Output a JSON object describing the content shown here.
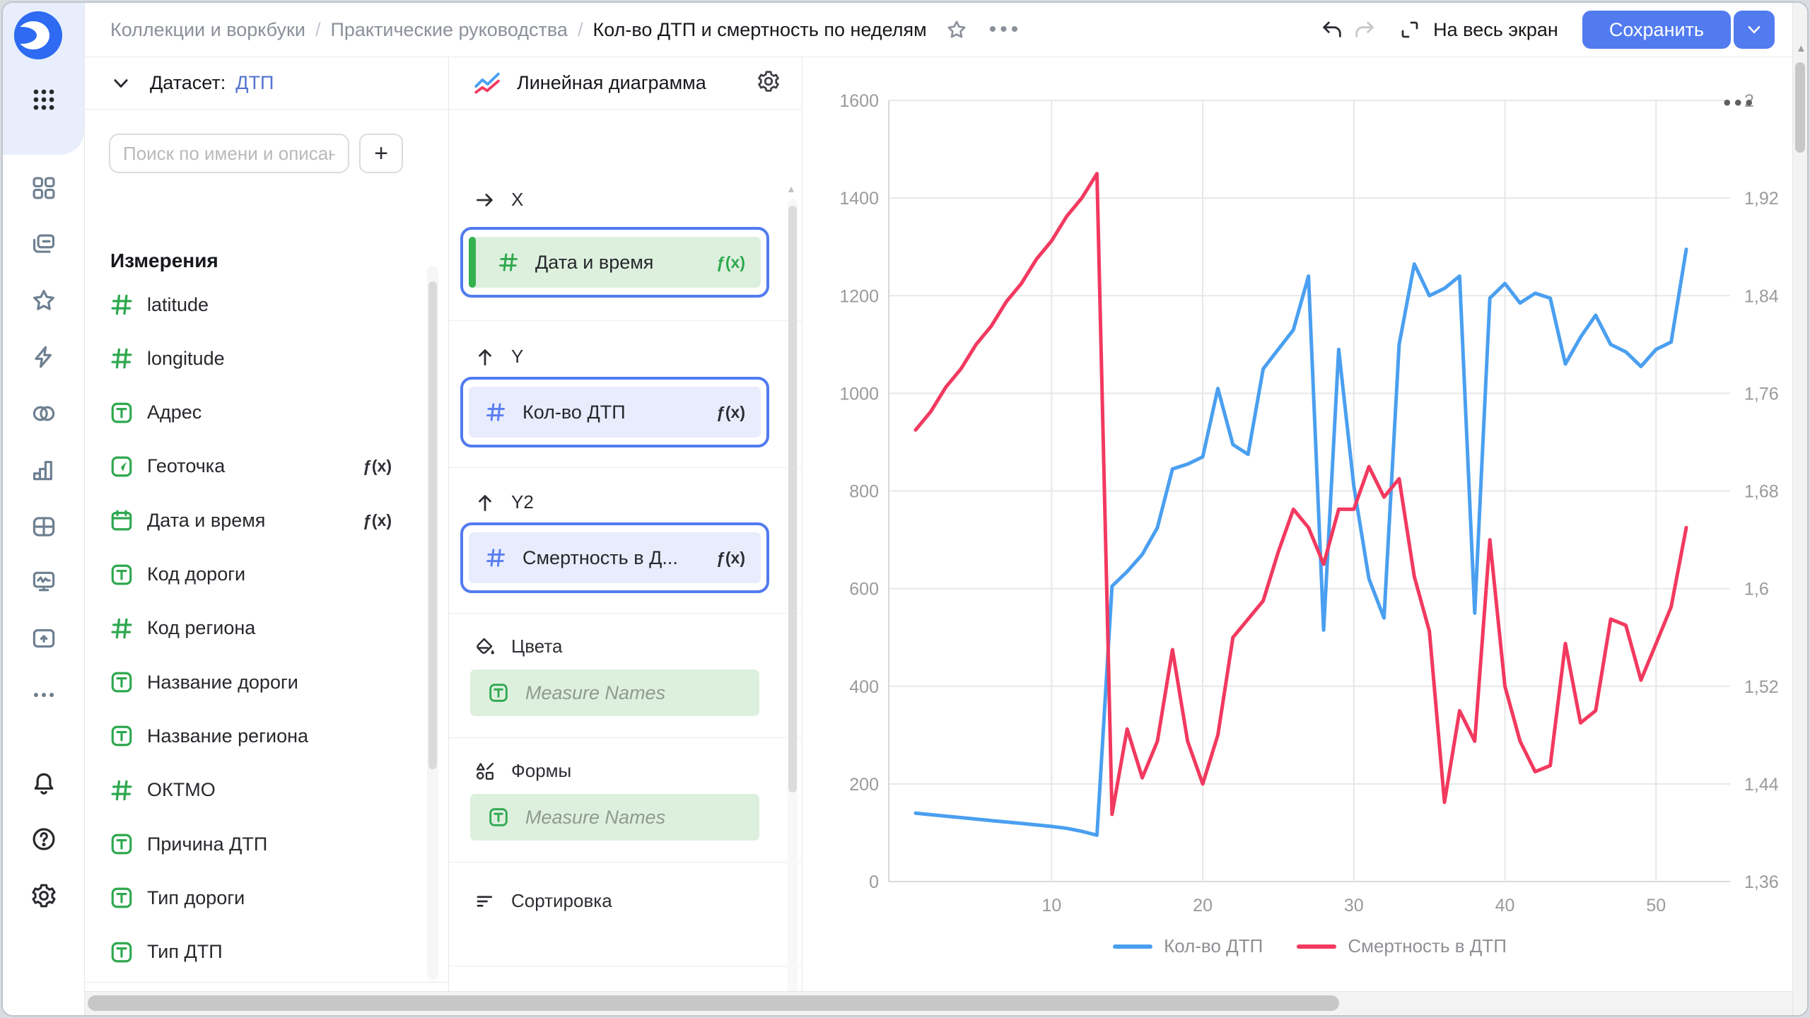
{
  "header": {
    "breadcrumbs": [
      "Коллекции и воркбуки",
      "Практические руководства",
      "Кол-во ДТП и смертность по неделям"
    ],
    "separator": "/",
    "more_dots": "•••",
    "fullscreen_label": "На весь экран",
    "save_label": "Сохранить"
  },
  "sidebar": {
    "icons": [
      "datalens-logo",
      "apps-grid",
      "dashboards",
      "workbooks",
      "favorites",
      "quick-actions",
      "connections",
      "charts",
      "tables",
      "monitoring",
      "storage",
      "more",
      "notifications",
      "help",
      "settings"
    ]
  },
  "dataset_panel": {
    "header_label": "Датасет:",
    "dataset_name": "ДТП",
    "search_placeholder": "Поиск по имени и описанию",
    "add_button": "+",
    "section_title": "Измерения",
    "formula_badge": "ƒ(x)",
    "fields": [
      {
        "type": "number",
        "name": "latitude"
      },
      {
        "type": "number",
        "name": "longitude"
      },
      {
        "type": "text",
        "name": "Адрес"
      },
      {
        "type": "geopoint",
        "name": "Геоточка",
        "formula": true
      },
      {
        "type": "calendar",
        "name": "Дата и время",
        "formula": true
      },
      {
        "type": "text",
        "name": "Код дороги"
      },
      {
        "type": "number",
        "name": "Код региона"
      },
      {
        "type": "text",
        "name": "Название дороги"
      },
      {
        "type": "text",
        "name": "Название региона"
      },
      {
        "type": "number",
        "name": "ОКТМО"
      },
      {
        "type": "text",
        "name": "Причина ДТП"
      },
      {
        "type": "text",
        "name": "Тип дороги"
      },
      {
        "type": "text",
        "name": "Тип ДТП"
      },
      {
        "type": "text",
        "name": "Measure Names",
        "muted": true
      }
    ]
  },
  "config_panel": {
    "chart_type_label": "Линейная диаграмма",
    "formula_badge": "ƒ(x)",
    "sections": {
      "x": {
        "label": "X",
        "field": {
          "name": "Дата и время",
          "formula": "ƒ(x)"
        }
      },
      "y": {
        "label": "Y",
        "field": {
          "name": "Кол-во ДТП",
          "formula": "ƒ(x)"
        }
      },
      "y2": {
        "label": "Y2",
        "field": {
          "name": "Смертность в Д...",
          "formula": "ƒ(x)"
        }
      },
      "colors": {
        "label": "Цвета",
        "field": {
          "name": "Measure Names"
        }
      },
      "shapes": {
        "label": "Формы",
        "field": {
          "name": "Measure Names"
        }
      },
      "sort": {
        "label": "Сортировка"
      }
    }
  },
  "chart": {
    "menu_dots": "•••"
  },
  "chart_data": {
    "type": "line",
    "x_weeks": [
      1,
      2,
      3,
      4,
      5,
      6,
      7,
      8,
      9,
      10,
      11,
      12,
      13,
      14,
      15,
      16,
      17,
      18,
      19,
      20,
      21,
      22,
      23,
      24,
      25,
      26,
      27,
      28,
      29,
      30,
      31,
      32,
      33,
      34,
      35,
      36,
      37,
      38,
      39,
      40,
      41,
      42,
      43,
      44,
      45,
      46,
      47,
      48,
      49,
      50,
      51,
      52
    ],
    "x_tick_labels": [
      "10",
      "20",
      "30",
      "40",
      "50"
    ],
    "x_ticks": [
      10,
      20,
      30,
      40,
      50
    ],
    "left_axis": {
      "min": 0,
      "max": 1600,
      "step": 200,
      "labels": [
        "1600",
        "1400",
        "1200",
        "1000",
        "800",
        "600",
        "400",
        "200",
        "0"
      ]
    },
    "right_axis": {
      "min": 1.36,
      "max": 2.0,
      "step": 0.08,
      "labels": [
        "2",
        "1,92",
        "1,84",
        "1,76",
        "1,68",
        "1,6",
        "1,52",
        "1,44",
        "1,36"
      ]
    },
    "grid": true,
    "legend_position": "bottom",
    "series": [
      {
        "name": "Кол-во ДТП",
        "axis": "left",
        "color": "#4a9ff0",
        "values": [
          140,
          137,
          134,
          131,
          128,
          125,
          122,
          119,
          116,
          113,
          109,
          103,
          95,
          605,
          635,
          670,
          725,
          845,
          855,
          870,
          1010,
          895,
          875,
          1050,
          1090,
          1130,
          1240,
          515,
          1090,
          810,
          620,
          540,
          1100,
          1265,
          1200,
          1215,
          1240,
          550,
          1195,
          1225,
          1185,
          1205,
          1195,
          1060,
          1115,
          1160,
          1100,
          1085,
          1055,
          1090,
          1105,
          1295
        ]
      },
      {
        "name": "Смертность в ДТП",
        "axis": "right",
        "color": "#f2395f",
        "values": [
          1.73,
          1.745,
          1.765,
          1.78,
          1.8,
          1.815,
          1.835,
          1.85,
          1.87,
          1.885,
          1.905,
          1.92,
          1.94,
          1.415,
          1.485,
          1.445,
          1.475,
          1.55,
          1.475,
          1.44,
          1.48,
          1.56,
          1.575,
          1.59,
          1.63,
          1.665,
          1.65,
          1.62,
          1.665,
          1.665,
          1.7,
          1.675,
          1.69,
          1.61,
          1.565,
          1.425,
          1.5,
          1.475,
          1.64,
          1.52,
          1.475,
          1.45,
          1.455,
          1.555,
          1.49,
          1.5,
          1.575,
          1.57,
          1.525,
          1.555,
          1.585,
          1.65
        ]
      }
    ]
  },
  "colors": {
    "accent_blue": "#527bf0",
    "field_green": "#2fa84f",
    "chart_blue": "#4a9ff0",
    "chart_red": "#f2395f",
    "pill_green_bg": "#ddf0de",
    "pill_blue_bg": "#e8ecfc"
  }
}
